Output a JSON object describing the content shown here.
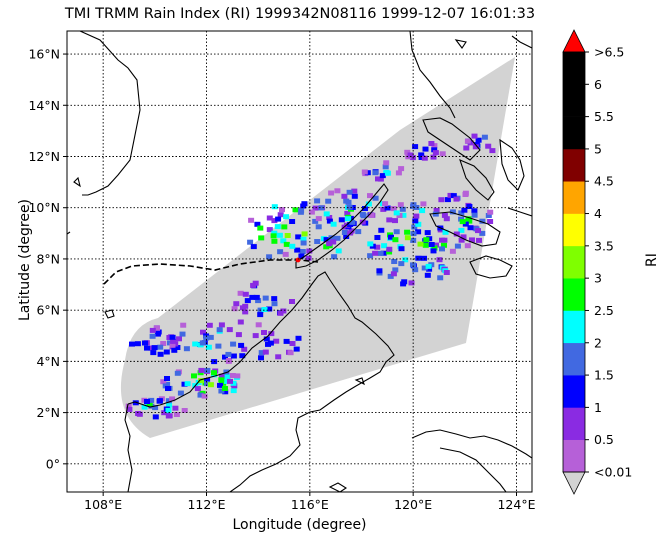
{
  "title": "TMI TRMM Rain Index (RI) 1999342N08116 1999-12-07 16:01:33",
  "xlabel": "Longitude (degree)",
  "ylabel": "Latitude (degree)",
  "colorbar": {
    "label": "RI",
    "ticks": [
      "<0.01",
      "0.5",
      "1",
      "1.5",
      "2",
      "2.5",
      "3",
      "3.5",
      "4",
      "4.5",
      "5",
      "5.5",
      "6",
      ">6.5"
    ],
    "colors": [
      "#b660d8",
      "#8a2be2",
      "#0000ff",
      "#4169e1",
      "#00ffff",
      "#00ff00",
      "#7fff00",
      "#ffff00",
      "#ffa500",
      "#800000",
      "#000000",
      "#000000",
      "#000000"
    ],
    "over_color": "#ff0000",
    "under_color": "#d3d3d3"
  },
  "map": {
    "lon_ticks": [
      "108°E",
      "112°E",
      "116°E",
      "120°E",
      "124°E"
    ],
    "lat_ticks": [
      "0°",
      "2°N",
      "4°N",
      "6°N",
      "8°N",
      "10°N",
      "12°N",
      "14°N",
      "16°N"
    ],
    "lon_range": [
      106.6,
      124.6
    ],
    "lat_range": [
      -1.1,
      16.9
    ],
    "grid": "dotted",
    "swath_color": "#d3d3d3",
    "track_style": "dashed"
  }
}
